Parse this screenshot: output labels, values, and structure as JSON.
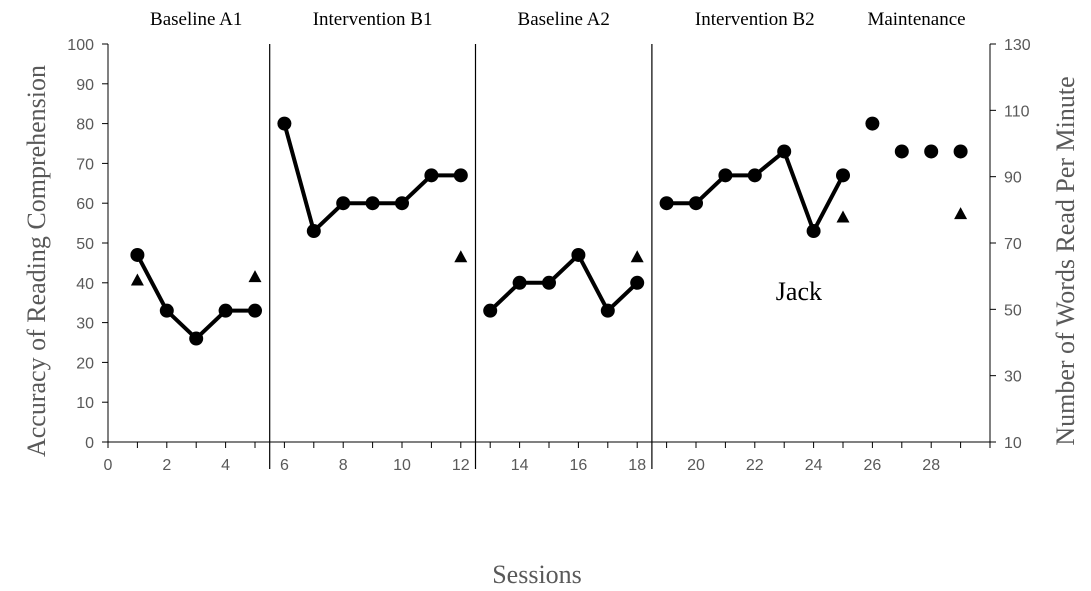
{
  "chart_data": {
    "type": "line",
    "title": "",
    "xlabel": "Sessions",
    "ylabel_left": "Accuracy of Reading Comprehension",
    "ylabel_right": "Number of Words Read Per Minute",
    "xlim": [
      0,
      30
    ],
    "ylim_left": [
      0,
      100
    ],
    "ylim_right": [
      10,
      130
    ],
    "x_ticks": [
      0,
      2,
      4,
      6,
      8,
      10,
      12,
      14,
      16,
      18,
      20,
      22,
      24,
      26,
      28
    ],
    "y_left_ticks": [
      0,
      10,
      20,
      30,
      40,
      50,
      60,
      70,
      80,
      90,
      100
    ],
    "y_right_ticks": [
      10,
      30,
      50,
      70,
      90,
      110,
      130
    ],
    "phases": [
      {
        "label": "Baseline A1",
        "start": 1,
        "end": 5
      },
      {
        "label": "Intervention B1",
        "start": 6,
        "end": 12
      },
      {
        "label": "Baseline A2",
        "start": 13,
        "end": 18
      },
      {
        "label": "Intervention B2",
        "start": 19,
        "end": 25
      },
      {
        "label": "Maintenance",
        "start": 26,
        "end": 29
      }
    ],
    "phase_change_lines": [
      5.5,
      12.5,
      18.5
    ],
    "annotation": "Jack",
    "series": [
      {
        "axis": "left",
        "marker": "circle",
        "color": "#000000",
        "segments": [
          [
            [
              1,
              47
            ],
            [
              2,
              33
            ],
            [
              3,
              26
            ],
            [
              4,
              33
            ],
            [
              5,
              33
            ]
          ],
          [
            [
              6,
              80
            ],
            [
              7,
              53
            ],
            [
              8,
              60
            ],
            [
              9,
              60
            ],
            [
              10,
              60
            ],
            [
              11,
              67
            ],
            [
              12,
              67
            ]
          ],
          [
            [
              13,
              33
            ],
            [
              14,
              40
            ],
            [
              15,
              40
            ],
            [
              16,
              47
            ],
            [
              17,
              33
            ],
            [
              18,
              40
            ]
          ],
          [
            [
              19,
              60
            ],
            [
              20,
              60
            ],
            [
              21,
              67
            ],
            [
              22,
              67
            ],
            [
              23,
              73
            ],
            [
              24,
              53
            ],
            [
              25,
              67
            ]
          ],
          [
            [
              26,
              80
            ]
          ],
          [
            [
              27,
              73
            ]
          ],
          [
            [
              28,
              73
            ]
          ],
          [
            [
              29,
              73
            ]
          ]
        ]
      },
      {
        "axis": "right",
        "marker": "triangle",
        "color": "#000000",
        "points": [
          [
            1,
            59
          ],
          [
            5,
            60
          ],
          [
            12,
            66
          ],
          [
            18,
            66
          ],
          [
            25,
            78
          ],
          [
            29,
            79
          ]
        ]
      }
    ]
  }
}
